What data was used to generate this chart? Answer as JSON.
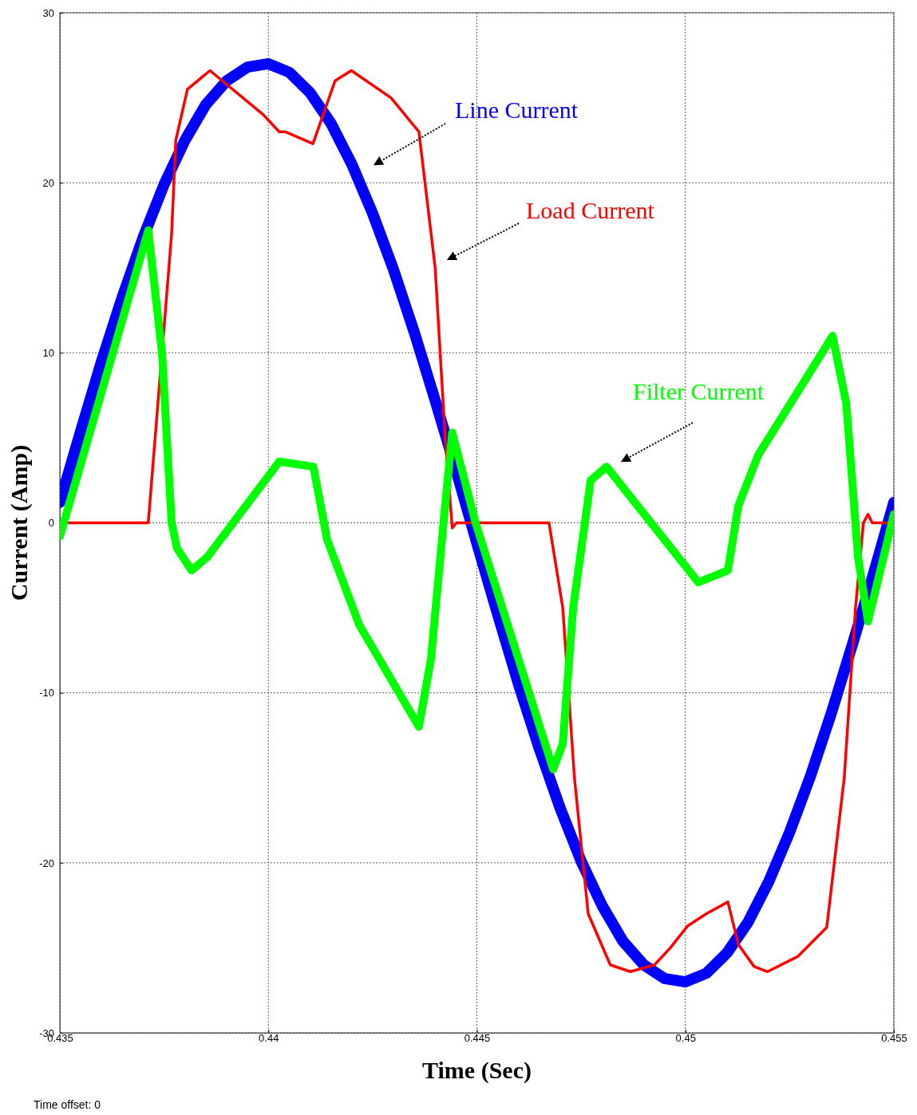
{
  "chart_data": {
    "type": "line",
    "xlabel": "Time (Sec)",
    "ylabel": "Current (Amp)",
    "xlim": [
      0.435,
      0.455
    ],
    "ylim": [
      -30,
      30
    ],
    "xticks": [
      0.435,
      0.44,
      0.445,
      0.45,
      0.455
    ],
    "yticks": [
      -30,
      -20,
      -10,
      0,
      10,
      20,
      30
    ],
    "grid": true,
    "line_style": "solid",
    "marker": "none",
    "annotations": [
      "Time offset: 0"
    ],
    "series": [
      {
        "name": "Line Current",
        "color": "#0000ff",
        "x": [
          0.435,
          0.4355,
          0.436,
          0.4365,
          0.437,
          0.4375,
          0.438,
          0.4385,
          0.439,
          0.4395,
          0.44,
          0.4405,
          0.441,
          0.4415,
          0.442,
          0.4425,
          0.443,
          0.4435,
          0.444,
          0.4445,
          0.445,
          0.4455,
          0.446,
          0.4465,
          0.447,
          0.4475,
          0.448,
          0.4485,
          0.449,
          0.4495,
          0.45,
          0.4505,
          0.451,
          0.4515,
          0.452,
          0.4525,
          0.453,
          0.4535,
          0.454,
          0.4545,
          0.455
        ],
        "values": [
          1.2,
          5.4,
          9.5,
          13.3,
          16.8,
          19.9,
          22.5,
          24.6,
          26.0,
          26.8,
          27.0,
          26.5,
          25.3,
          23.5,
          21.1,
          18.2,
          14.9,
          11.2,
          7.2,
          3.1,
          -1.2,
          -5.4,
          -9.5,
          -13.3,
          -16.8,
          -19.9,
          -22.5,
          -24.6,
          -26.0,
          -26.8,
          -27.0,
          -26.5,
          -25.3,
          -23.5,
          -21.1,
          -18.2,
          -14.9,
          -11.2,
          -7.2,
          -3.1,
          1.2
        ]
      },
      {
        "name": "Load Current",
        "color": "#ff0000",
        "x": [
          0.435,
          0.43712,
          0.43768,
          0.43778,
          0.43806,
          0.4386,
          0.43988,
          0.44026,
          0.4404,
          0.44107,
          0.4416,
          0.44199,
          0.44294,
          0.44361,
          0.444,
          0.44424,
          0.44441,
          0.44451,
          0.44673,
          0.44706,
          0.44734,
          0.44767,
          0.4482,
          0.44868,
          0.44926,
          0.44964,
          0.45006,
          0.4505,
          0.45102,
          0.45127,
          0.45165,
          0.45197,
          0.4527,
          0.45339,
          0.45381,
          0.45408,
          0.45427,
          0.45438,
          0.45448,
          0.455
        ],
        "values": [
          0,
          0,
          17,
          22.5,
          25.5,
          26.6,
          24,
          23,
          23,
          22.3,
          26,
          26.6,
          25,
          23,
          15,
          5,
          -0.3,
          0,
          0,
          -5,
          -15,
          -23,
          -26,
          -26.4,
          -26,
          -25,
          -23.7,
          -23,
          -22.3,
          -24.8,
          -26.1,
          -26.4,
          -25.5,
          -23.8,
          -15,
          -5,
          0,
          0.5,
          0,
          0
        ]
      },
      {
        "name": "Filter Current",
        "color": "#00ff00",
        "x": [
          0.435,
          0.43712,
          0.43745,
          0.43768,
          0.43781,
          0.43816,
          0.43854,
          0.44026,
          0.44108,
          0.44141,
          0.44218,
          0.44361,
          0.4439,
          0.4442,
          0.44441,
          0.44497,
          0.44683,
          0.44706,
          0.44731,
          0.44773,
          0.44811,
          0.45031,
          0.45102,
          0.45127,
          0.45175,
          0.45328,
          0.45353,
          0.45386,
          0.45414,
          0.45438,
          0.455
        ],
        "values": [
          -0.8,
          17.2,
          10,
          0,
          -1.5,
          -2.8,
          -2,
          3.6,
          3.3,
          -1,
          -6,
          -12,
          -8,
          0,
          5.3,
          0,
          -14.5,
          -13,
          -5,
          2.5,
          3.3,
          -3.5,
          -2.8,
          1,
          4,
          10,
          11,
          7,
          -2,
          -5.8,
          0.5
        ]
      }
    ]
  }
}
